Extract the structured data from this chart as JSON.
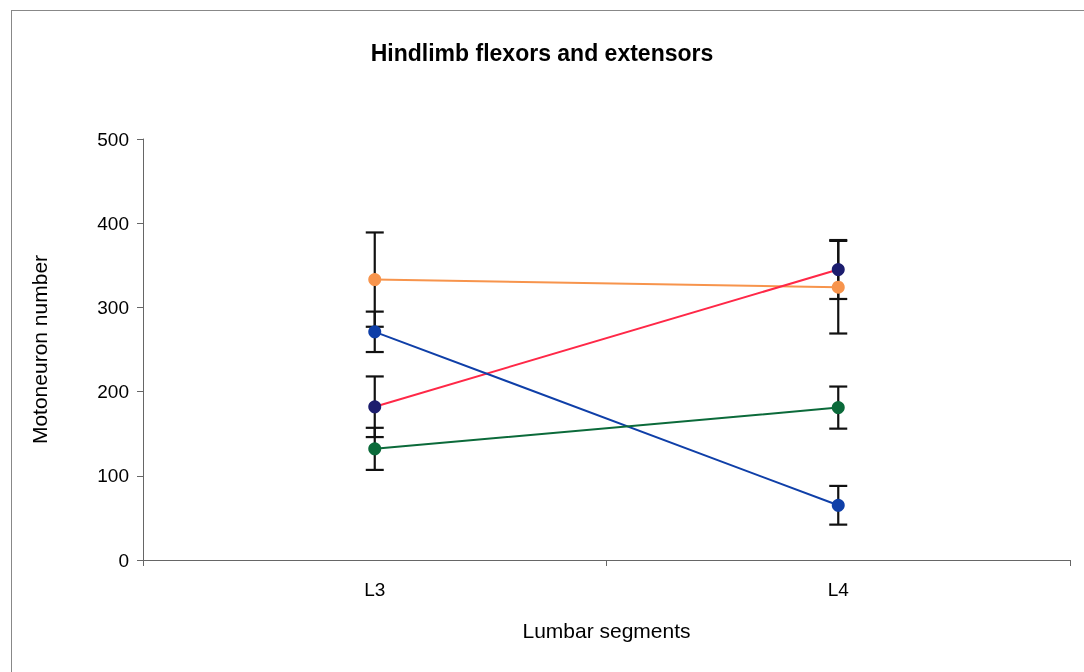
{
  "chart_data": {
    "type": "line",
    "title": "Hindlimb flexors and extensors",
    "xlabel": "Lumbar segments",
    "ylabel": "Motoneuron number",
    "categories": [
      "L3",
      "L4"
    ],
    "ylim": [
      0,
      500
    ],
    "yticks": [
      0,
      100,
      200,
      300,
      400,
      500
    ],
    "marker": "circle",
    "line_style": "solid",
    "series": [
      {
        "color": "#f7944c",
        "values": [
          333,
          324
        ],
        "errors": [
          56,
          55
        ]
      },
      {
        "color": "#ff2847",
        "colors": [
          "#1c1d6e",
          "#1c1d6e"
        ],
        "values": [
          182,
          345
        ],
        "errors": [
          36,
          35
        ]
      },
      {
        "color": "#0f3fa8",
        "values": [
          271,
          65
        ],
        "errors": [
          24,
          23
        ]
      },
      {
        "color": "#0b6a3a",
        "values": [
          132,
          181
        ],
        "errors": [
          25,
          25
        ]
      }
    ]
  }
}
